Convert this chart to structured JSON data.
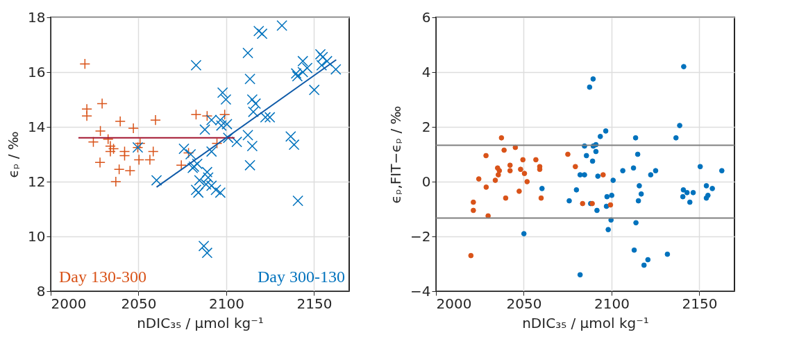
{
  "chart_data": [
    {
      "type": "scatter",
      "xlabel": "nDIC₃₅ / μmol kg⁻¹",
      "ylabel": "ϵₚ / ‰",
      "xlim": [
        2000,
        2170
      ],
      "xticks": [
        2000,
        2050,
        2100,
        2150
      ],
      "ylim": [
        8,
        18
      ],
      "yticks": [
        8,
        10,
        12,
        14,
        16,
        18
      ],
      "grid": true,
      "legend": "bottom",
      "series": [
        {
          "name": "Day 130-300",
          "color": "#d95319",
          "marker": "cross",
          "x": [
            2019.5,
            2020.6,
            2020.6,
            2029.3,
            2039.6,
            2047.1,
            2059.7,
            2028.3,
            2024.3,
            2032.7,
            2034,
            2035.8,
            2034,
            2042.1,
            2042.1,
            2049.6,
            2050.9,
            2050.3,
            2058.4,
            2056.5,
            2028.1,
            2039,
            2045.2,
            2037.1,
            2074.4,
            2078.5,
            2082.8,
            2089.1,
            2099.1,
            2094.7
          ],
          "values": [
            16.3,
            14.65,
            14.4,
            14.85,
            14.2,
            13.95,
            14.25,
            13.85,
            13.45,
            13.55,
            13.3,
            13.2,
            13.1,
            13.1,
            12.95,
            13.25,
            13.4,
            12.8,
            13.1,
            12.8,
            12.7,
            12.45,
            12.4,
            12.0,
            12.6,
            13.05,
            14.45,
            14.4,
            14.45,
            13.4
          ]
        },
        {
          "name": "Day 300-130",
          "color": "#0072bd",
          "marker": "x",
          "x": [
            2060.3,
            2049.6,
            2075.9,
            2079.7,
            2081.6,
            2082.8,
            2082.8,
            2083.5,
            2080.9,
            2084.7,
            2084.1,
            2087.8,
            2091.6,
            2091.6,
            2089.1,
            2089.7,
            2088.5,
            2091.6,
            2094.1,
            2096.6,
            2096.6,
            2097.2,
            2100.4,
            2097.9,
            2099.8,
            2101.1,
            2106,
            2087.2,
            2089.1,
            2112.3,
            2113.5,
            2114.8,
            2116.7,
            2115.4,
            2112.3,
            2114.8,
            2113.5,
            2118.5,
            2120.4,
            2122.3,
            2124.8,
            2131.7,
            2136.7,
            2138.6,
            2140.8,
            2139.8,
            2140.5,
            2143.6,
            2143.6,
            2146.1,
            2150.1,
            2153.6,
            2154.9,
            2154.3,
            2157.4,
            2162.4
          ],
          "values": [
            12.05,
            13.25,
            13.2,
            13.0,
            12.55,
            16.25,
            11.7,
            12.65,
            12.5,
            12.05,
            11.6,
            13.9,
            14.25,
            13.1,
            12.35,
            12.15,
            11.9,
            11.85,
            11.7,
            11.6,
            14.25,
            14.05,
            14.1,
            15.25,
            15.0,
            13.6,
            13.45,
            9.65,
            9.4,
            16.7,
            15.75,
            15.0,
            14.85,
            14.55,
            13.7,
            13.3,
            12.6,
            17.5,
            17.4,
            14.35,
            14.35,
            17.7,
            13.65,
            13.35,
            11.3,
            15.95,
            15.85,
            16.4,
            16.0,
            16.15,
            15.35,
            16.65,
            16.55,
            16.25,
            16.4,
            16.1
          ]
        },
        {
          "type": "line",
          "color": "#a2142f",
          "x": [
            2015.8,
            2104.7
          ],
          "values": [
            13.6,
            13.6
          ]
        },
        {
          "type": "line",
          "color": "#0e5aa8",
          "x": [
            2060.3,
            2162.6
          ],
          "values": [
            11.8,
            16.45
          ]
        }
      ]
    },
    {
      "type": "scatter",
      "xlabel": "nDIC₃₅ / μmol kg⁻¹",
      "ylabel": "ϵₚ,FIT−ϵₚ / ‰",
      "xlim": [
        2000,
        2170
      ],
      "xticks": [
        2000,
        2050,
        2100,
        2150
      ],
      "ylim": [
        -4,
        6
      ],
      "yticks": [
        -4,
        -2,
        0,
        2,
        4,
        6
      ],
      "grid": true,
      "marker": "circle",
      "ref_lines": [
        {
          "axis": "y",
          "value": 1.33,
          "color": "#808080"
        },
        {
          "axis": "y",
          "value": -1.33,
          "color": "#808080"
        }
      ],
      "series": [
        {
          "color": "#0072bd",
          "x": [
            2050.1,
            2060.4,
            2082.1,
            2087.5,
            2089.5,
            2096.7,
            2093.6,
            2084.6,
            2089.6,
            2091.1,
            2091.1,
            2085.7,
            2089.2,
            2082.1,
            2084.6,
            2092.2,
            2100.9,
            2080,
            2075.9,
            2088.1,
            2091.7,
            2097.1,
            2097.4,
            2100.1,
            2099.7,
            2098.1,
            2106.4,
            2113.7,
            2114.9,
            2112.5,
            2115.8,
            2116.9,
            2115.3,
            2113.9,
            2112.9,
            2120.7,
            2118.5,
            2122.3,
            2125.1,
            2131.8,
            2136.7,
            2138.8,
            2141.1,
            2140.9,
            2140.6,
            2143,
            2144.6,
            2146.5,
            2150.5,
            2154,
            2157.4,
            2154,
            2154.9,
            2162.8
          ],
          "values": [
            -1.9,
            -0.25,
            -3.4,
            3.45,
            3.75,
            1.85,
            1.65,
            1.3,
            1.3,
            1.35,
            1.1,
            0.95,
            0.75,
            0.25,
            0.25,
            0.2,
            0.05,
            -0.3,
            -0.7,
            -0.8,
            -1.05,
            -0.9,
            -0.55,
            -0.5,
            -1.4,
            -1.75,
            0.4,
            1.6,
            1.0,
            0.5,
            -0.15,
            -0.45,
            -0.7,
            -1.5,
            -2.5,
            -2.85,
            -3.05,
            0.25,
            0.4,
            -2.65,
            1.6,
            2.05,
            4.2,
            -0.3,
            -0.55,
            -0.4,
            -0.75,
            -0.4,
            0.55,
            -0.15,
            -0.25,
            -0.6,
            -0.5,
            0.4
          ]
        },
        {
          "color": "#d95319",
          "x": [
            2019.9,
            2021.3,
            2021.3,
            2024.4,
            2028.5,
            2028.6,
            2029.7,
            2033.8,
            2035.1,
            2035.5,
            2036.1,
            2037.3,
            2038.8,
            2039.7,
            2042.2,
            2042.2,
            2045.2,
            2047.4,
            2048.2,
            2049.5,
            2050.4,
            2051.9,
            2056.9,
            2059.1,
            2059.1,
            2059.9,
            2075.1,
            2079.4,
            2095.2,
            2083.5,
            2089,
            2099.4
          ],
          "values": [
            -2.7,
            -0.75,
            -1.05,
            0.1,
            0.95,
            -0.2,
            -1.25,
            0.05,
            0.5,
            0.25,
            0.4,
            1.6,
            1.15,
            -0.6,
            0.6,
            0.4,
            1.25,
            -0.35,
            0.45,
            0.8,
            0.3,
            0.0,
            0.8,
            0.55,
            0.45,
            -0.6,
            1.0,
            0.55,
            0.25,
            -0.8,
            -0.8,
            -0.85
          ]
        }
      ]
    }
  ]
}
